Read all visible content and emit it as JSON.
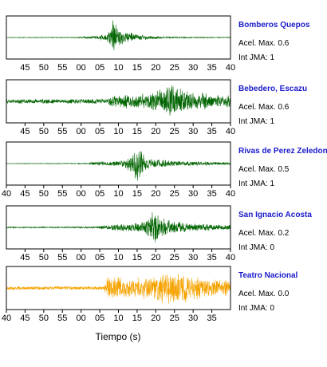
{
  "colors": {
    "station_name": "#1a1acc",
    "trace_default": "#006400",
    "trace_highlight": "#f5a300",
    "frame": "#000000"
  },
  "chart_data": {
    "type": "line",
    "xlabel": "Tiempo (s)",
    "grid": false,
    "panels": [
      {
        "station": "Bomberos Quepos",
        "accel_label": "Acel. Max.",
        "accel_value": "0.6",
        "int_label": "Int JMA:",
        "int_value": "1",
        "color": "#006400",
        "tick_labels": [
          "45",
          "50",
          "55",
          "00",
          "05",
          "10",
          "15",
          "20",
          "25",
          "30",
          "35",
          "40"
        ],
        "tick_positions": [
          45,
          50,
          55,
          60,
          65,
          70,
          75,
          80,
          85,
          90,
          95,
          100
        ],
        "x_range": [
          40,
          100
        ],
        "ticks_shown": false,
        "envelope": [
          [
            40,
            0.01
          ],
          [
            59,
            0.02
          ],
          [
            60,
            0.05
          ],
          [
            64,
            0.08
          ],
          [
            67,
            0.22
          ],
          [
            68,
            0.55
          ],
          [
            68.5,
            1.0
          ],
          [
            69,
            0.85
          ],
          [
            70,
            0.5
          ],
          [
            72,
            0.32
          ],
          [
            75,
            0.18
          ],
          [
            78,
            0.1
          ],
          [
            82,
            0.05
          ],
          [
            90,
            0.03
          ],
          [
            100,
            0.02
          ]
        ],
        "line_only": true
      },
      {
        "station": "Bebedero, Escazu",
        "accel_label": "Acel. Max.",
        "accel_value": "0.6",
        "int_label": "Int JMA:",
        "int_value": "1",
        "color": "#006400",
        "tick_labels": [
          "45",
          "50",
          "55",
          "00",
          "05",
          "10",
          "15",
          "20",
          "25",
          "30",
          "35",
          "40"
        ],
        "tick_positions": [
          45,
          50,
          55,
          60,
          65,
          70,
          75,
          80,
          85,
          90,
          95,
          100
        ],
        "x_range": [
          40,
          100
        ],
        "ticks_shown": true,
        "envelope": [
          [
            40,
            0.12
          ],
          [
            58,
            0.12
          ],
          [
            67,
            0.15
          ],
          [
            68,
            0.32
          ],
          [
            72,
            0.4
          ],
          [
            75,
            0.38
          ],
          [
            80,
            0.5
          ],
          [
            82,
            0.75
          ],
          [
            84,
            1.0
          ],
          [
            86,
            0.8
          ],
          [
            88,
            0.55
          ],
          [
            92,
            0.45
          ],
          [
            96,
            0.38
          ],
          [
            100,
            0.35
          ]
        ]
      },
      {
        "station": "Rivas de Perez Zeledon",
        "accel_label": "Acel. Max.",
        "accel_value": "0.5",
        "int_label": "Int JMA:",
        "int_value": "1",
        "color": "#006400",
        "tick_labels": [
          "40",
          "45",
          "50",
          "55",
          "00",
          "05",
          "10",
          "15",
          "20",
          "25",
          "30",
          "35",
          "40"
        ],
        "tick_positions": [
          40,
          45,
          50,
          55,
          60,
          65,
          70,
          75,
          80,
          85,
          90,
          95,
          100
        ],
        "x_range": [
          40,
          100
        ],
        "ticks_shown": true,
        "envelope": [
          [
            40,
            0.01
          ],
          [
            62,
            0.02
          ],
          [
            63,
            0.1
          ],
          [
            70,
            0.14
          ],
          [
            72,
            0.3
          ],
          [
            73.5,
            0.55
          ],
          [
            75,
            1.0
          ],
          [
            76.5,
            0.6
          ],
          [
            78,
            0.3
          ],
          [
            82,
            0.22
          ],
          [
            86,
            0.15
          ],
          [
            92,
            0.1
          ],
          [
            100,
            0.06
          ]
        ]
      },
      {
        "station": "San Ignacio Acosta",
        "accel_label": "Acel. Max.",
        "accel_value": "0.2",
        "int_label": "Int JMA:",
        "int_value": "0",
        "color": "#006400",
        "tick_labels": [
          "45",
          "50",
          "55",
          "00",
          "05",
          "10",
          "15",
          "20",
          "25",
          "30",
          "35",
          "40"
        ],
        "tick_positions": [
          45,
          50,
          55,
          60,
          65,
          70,
          75,
          80,
          85,
          90,
          95,
          100
        ],
        "x_range": [
          40,
          100
        ],
        "ticks_shown": true,
        "envelope": [
          [
            40,
            0.03
          ],
          [
            64,
            0.04
          ],
          [
            66,
            0.12
          ],
          [
            72,
            0.22
          ],
          [
            76,
            0.3
          ],
          [
            78,
            0.5
          ],
          [
            79.5,
            1.0
          ],
          [
            81,
            0.6
          ],
          [
            84,
            0.35
          ],
          [
            90,
            0.2
          ],
          [
            96,
            0.15
          ],
          [
            100,
            0.15
          ]
        ]
      },
      {
        "station": "Teatro Nacional",
        "accel_label": "Acel. Max.",
        "accel_value": "0.0",
        "int_label": "Int JMA:",
        "int_value": "0",
        "color": "#f5a300",
        "tick_labels": [
          "40",
          "45",
          "50",
          "55",
          "00",
          "05",
          "10",
          "15",
          "20",
          "25",
          "30",
          "35"
        ],
        "tick_positions": [
          40,
          45,
          50,
          55,
          60,
          65,
          70,
          75,
          80,
          85,
          90,
          95
        ],
        "x_range": [
          40,
          100
        ],
        "ticks_shown": true,
        "envelope": [
          [
            40,
            0.1
          ],
          [
            66,
            0.1
          ],
          [
            67,
            0.55
          ],
          [
            70,
            0.6
          ],
          [
            74,
            0.55
          ],
          [
            78,
            0.6
          ],
          [
            81,
            0.8
          ],
          [
            85,
            1.0
          ],
          [
            88,
            0.8
          ],
          [
            92,
            0.55
          ],
          [
            96,
            0.45
          ],
          [
            100,
            0.4
          ]
        ]
      }
    ]
  }
}
